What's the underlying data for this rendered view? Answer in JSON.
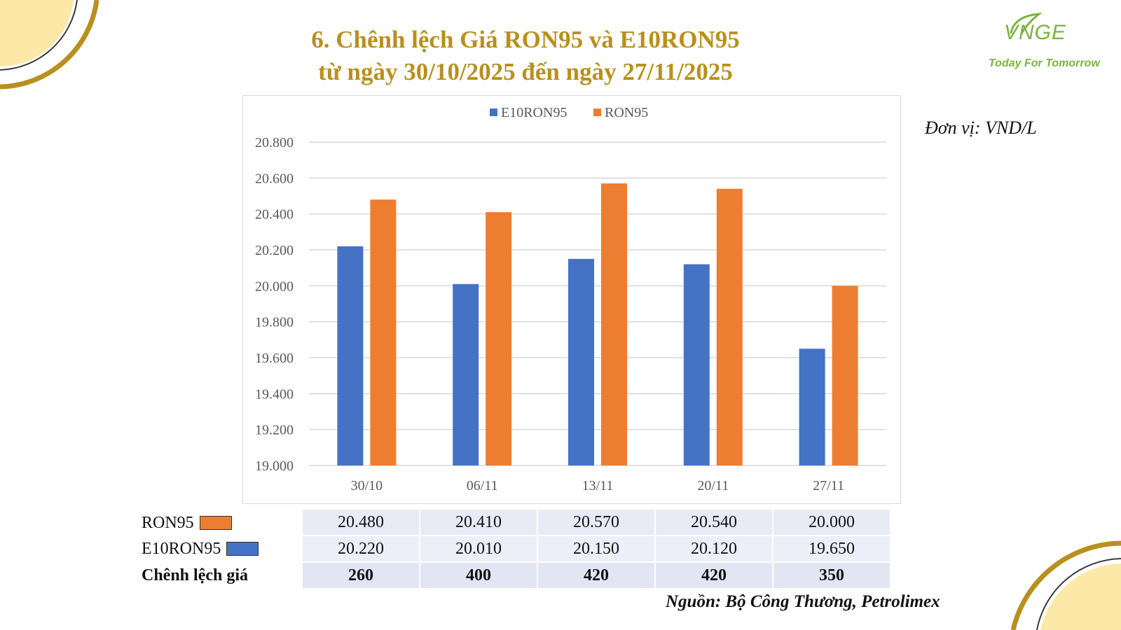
{
  "title_line1": "6. Chênh lệch Giá RON95 và E10RON95",
  "title_line2": "từ ngày 30/10/2025 đến ngày 27/11/2025",
  "logo": {
    "mark": "VNGE",
    "tagline": "Today For Tomorrow"
  },
  "unit": "Đơn vị: VND/L",
  "source": "Nguồn: Bộ Công Thương, Petrolimex",
  "colors": {
    "e10ron95": "#4472c4",
    "ron95": "#ed7d31",
    "gold": "#b8901e",
    "decor_fill": "#fce9a8"
  },
  "chart_data": {
    "type": "bar",
    "categories": [
      "30/10",
      "06/11",
      "13/11",
      "20/11",
      "27/11"
    ],
    "series": [
      {
        "name": "E10RON95",
        "values": [
          20220,
          20010,
          20150,
          20120,
          19650
        ]
      },
      {
        "name": "RON95",
        "values": [
          20480,
          20410,
          20570,
          20540,
          20000
        ]
      }
    ],
    "ylim": [
      19000,
      20800
    ],
    "yticks": [
      19000,
      19200,
      19400,
      19600,
      19800,
      20000,
      20200,
      20400,
      20600,
      20800
    ],
    "ytick_labels": [
      "19.000",
      "19.200",
      "19.400",
      "19.600",
      "19.800",
      "20.000",
      "20.200",
      "20.400",
      "20.600",
      "20.800"
    ],
    "legend": [
      "E10RON95",
      "RON95"
    ],
    "legend_position": "top",
    "grid": true
  },
  "table": {
    "rows": [
      {
        "label": "RON95",
        "values": [
          "20.480",
          "20.410",
          "20.570",
          "20.540",
          "20.000"
        ]
      },
      {
        "label": "E10RON95",
        "values": [
          "20.220",
          "20.010",
          "20.150",
          "20.120",
          "19.650"
        ]
      },
      {
        "label": "Chênh lệch giá",
        "values": [
          "260",
          "400",
          "420",
          "420",
          "350"
        ]
      }
    ]
  }
}
